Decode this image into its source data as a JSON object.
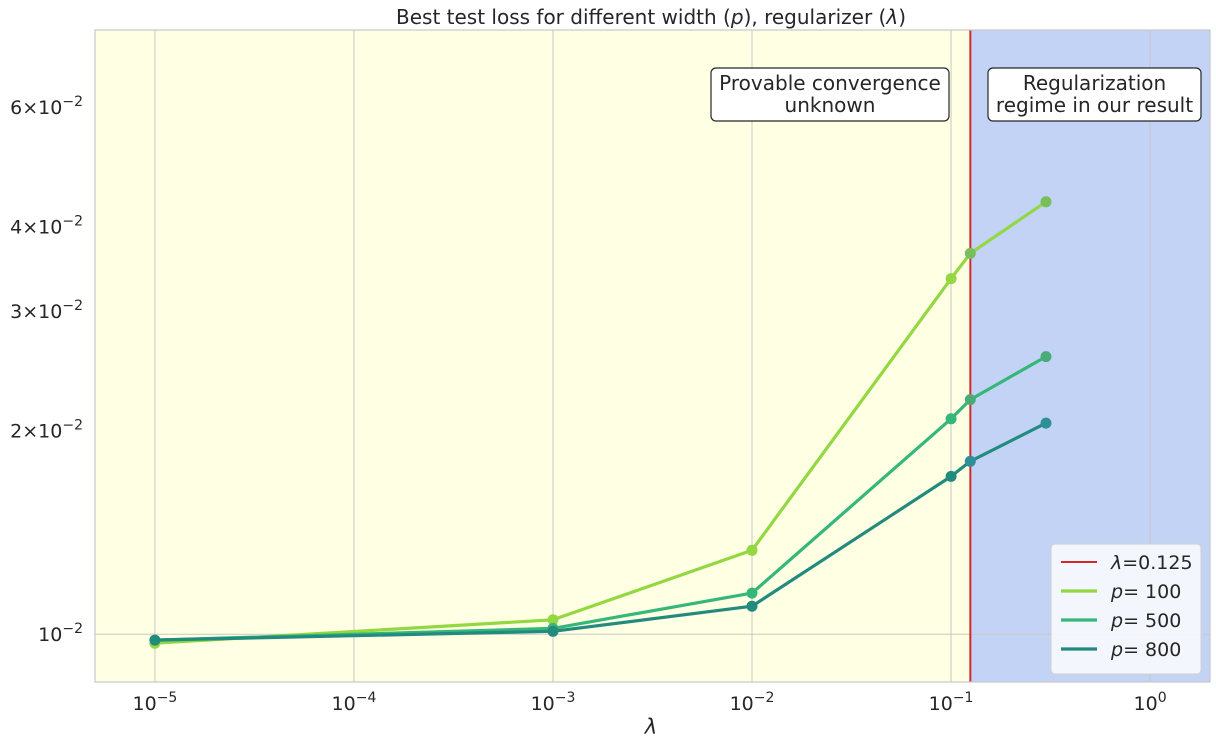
{
  "chart_data": {
    "type": "line",
    "title": "Best test loss for different width (p), regularizer (λ)",
    "xlabel": "λ",
    "ylabel": "",
    "xscale": "log",
    "yscale": "log",
    "xlim": [
      5e-06,
      2
    ],
    "ylim": [
      0.0085,
      0.078
    ],
    "grid": true,
    "legend_position": "bottom-right",
    "x": [
      1e-05,
      0.001,
      0.01,
      0.1,
      0.125,
      0.3
    ],
    "xticks": [
      {
        "value": 1e-05,
        "base": "10",
        "exp": "−5"
      },
      {
        "value": 0.0001,
        "base": "10",
        "exp": "−4"
      },
      {
        "value": 0.001,
        "base": "10",
        "exp": "−3"
      },
      {
        "value": 0.01,
        "base": "10",
        "exp": "−2"
      },
      {
        "value": 0.1,
        "base": "10",
        "exp": "−1"
      },
      {
        "value": 1,
        "base": "10",
        "exp": "0"
      }
    ],
    "yticks": [
      {
        "value": 0.01,
        "coef": "",
        "base": "10",
        "exp": "−2"
      },
      {
        "value": 0.02,
        "coef": "2",
        "base": "10",
        "exp": "−2"
      },
      {
        "value": 0.03,
        "coef": "3",
        "base": "10",
        "exp": "−2"
      },
      {
        "value": 0.04,
        "coef": "4",
        "base": "10",
        "exp": "−2"
      },
      {
        "value": 0.06,
        "coef": "6",
        "base": "10",
        "exp": "−2"
      }
    ],
    "series": [
      {
        "name": "p = 100",
        "color": "#93d741",
        "values": [
          0.0097,
          0.0105,
          0.0133,
          0.0335,
          0.0365,
          0.0435
        ]
      },
      {
        "name": "p = 500",
        "color": "#35b779",
        "values": [
          0.0098,
          0.0102,
          0.0115,
          0.0208,
          0.0222,
          0.0257
        ]
      },
      {
        "name": "p = 800",
        "color": "#228b7e",
        "values": [
          0.0098,
          0.0101,
          0.011,
          0.0171,
          0.018,
          0.0205
        ]
      }
    ],
    "marker_colors_right_region": [
      "#78bf5c",
      "#4aab78",
      "#2e8f99"
    ],
    "vline": {
      "x": 0.125,
      "color": "#d62728",
      "label": "λ=0.125"
    },
    "regions": [
      {
        "name": "left",
        "color": "#ffffe4"
      },
      {
        "name": "right",
        "color": "#c2d3f6"
      }
    ],
    "annotations": [
      {
        "id": "left",
        "lines": [
          "Provable convergence",
          "unknown"
        ]
      },
      {
        "id": "right",
        "lines": [
          "Regularization",
          "regime in our result"
        ]
      }
    ],
    "legend": [
      {
        "symbol": "λ",
        "text": "=0.125",
        "color": "#d62728"
      },
      {
        "symbol": "p",
        "text": "=  100",
        "color": "#93d741"
      },
      {
        "symbol": "p",
        "text": "=  500",
        "color": "#35b779"
      },
      {
        "symbol": "p",
        "text": "=  800",
        "color": "#228b7e"
      }
    ]
  }
}
